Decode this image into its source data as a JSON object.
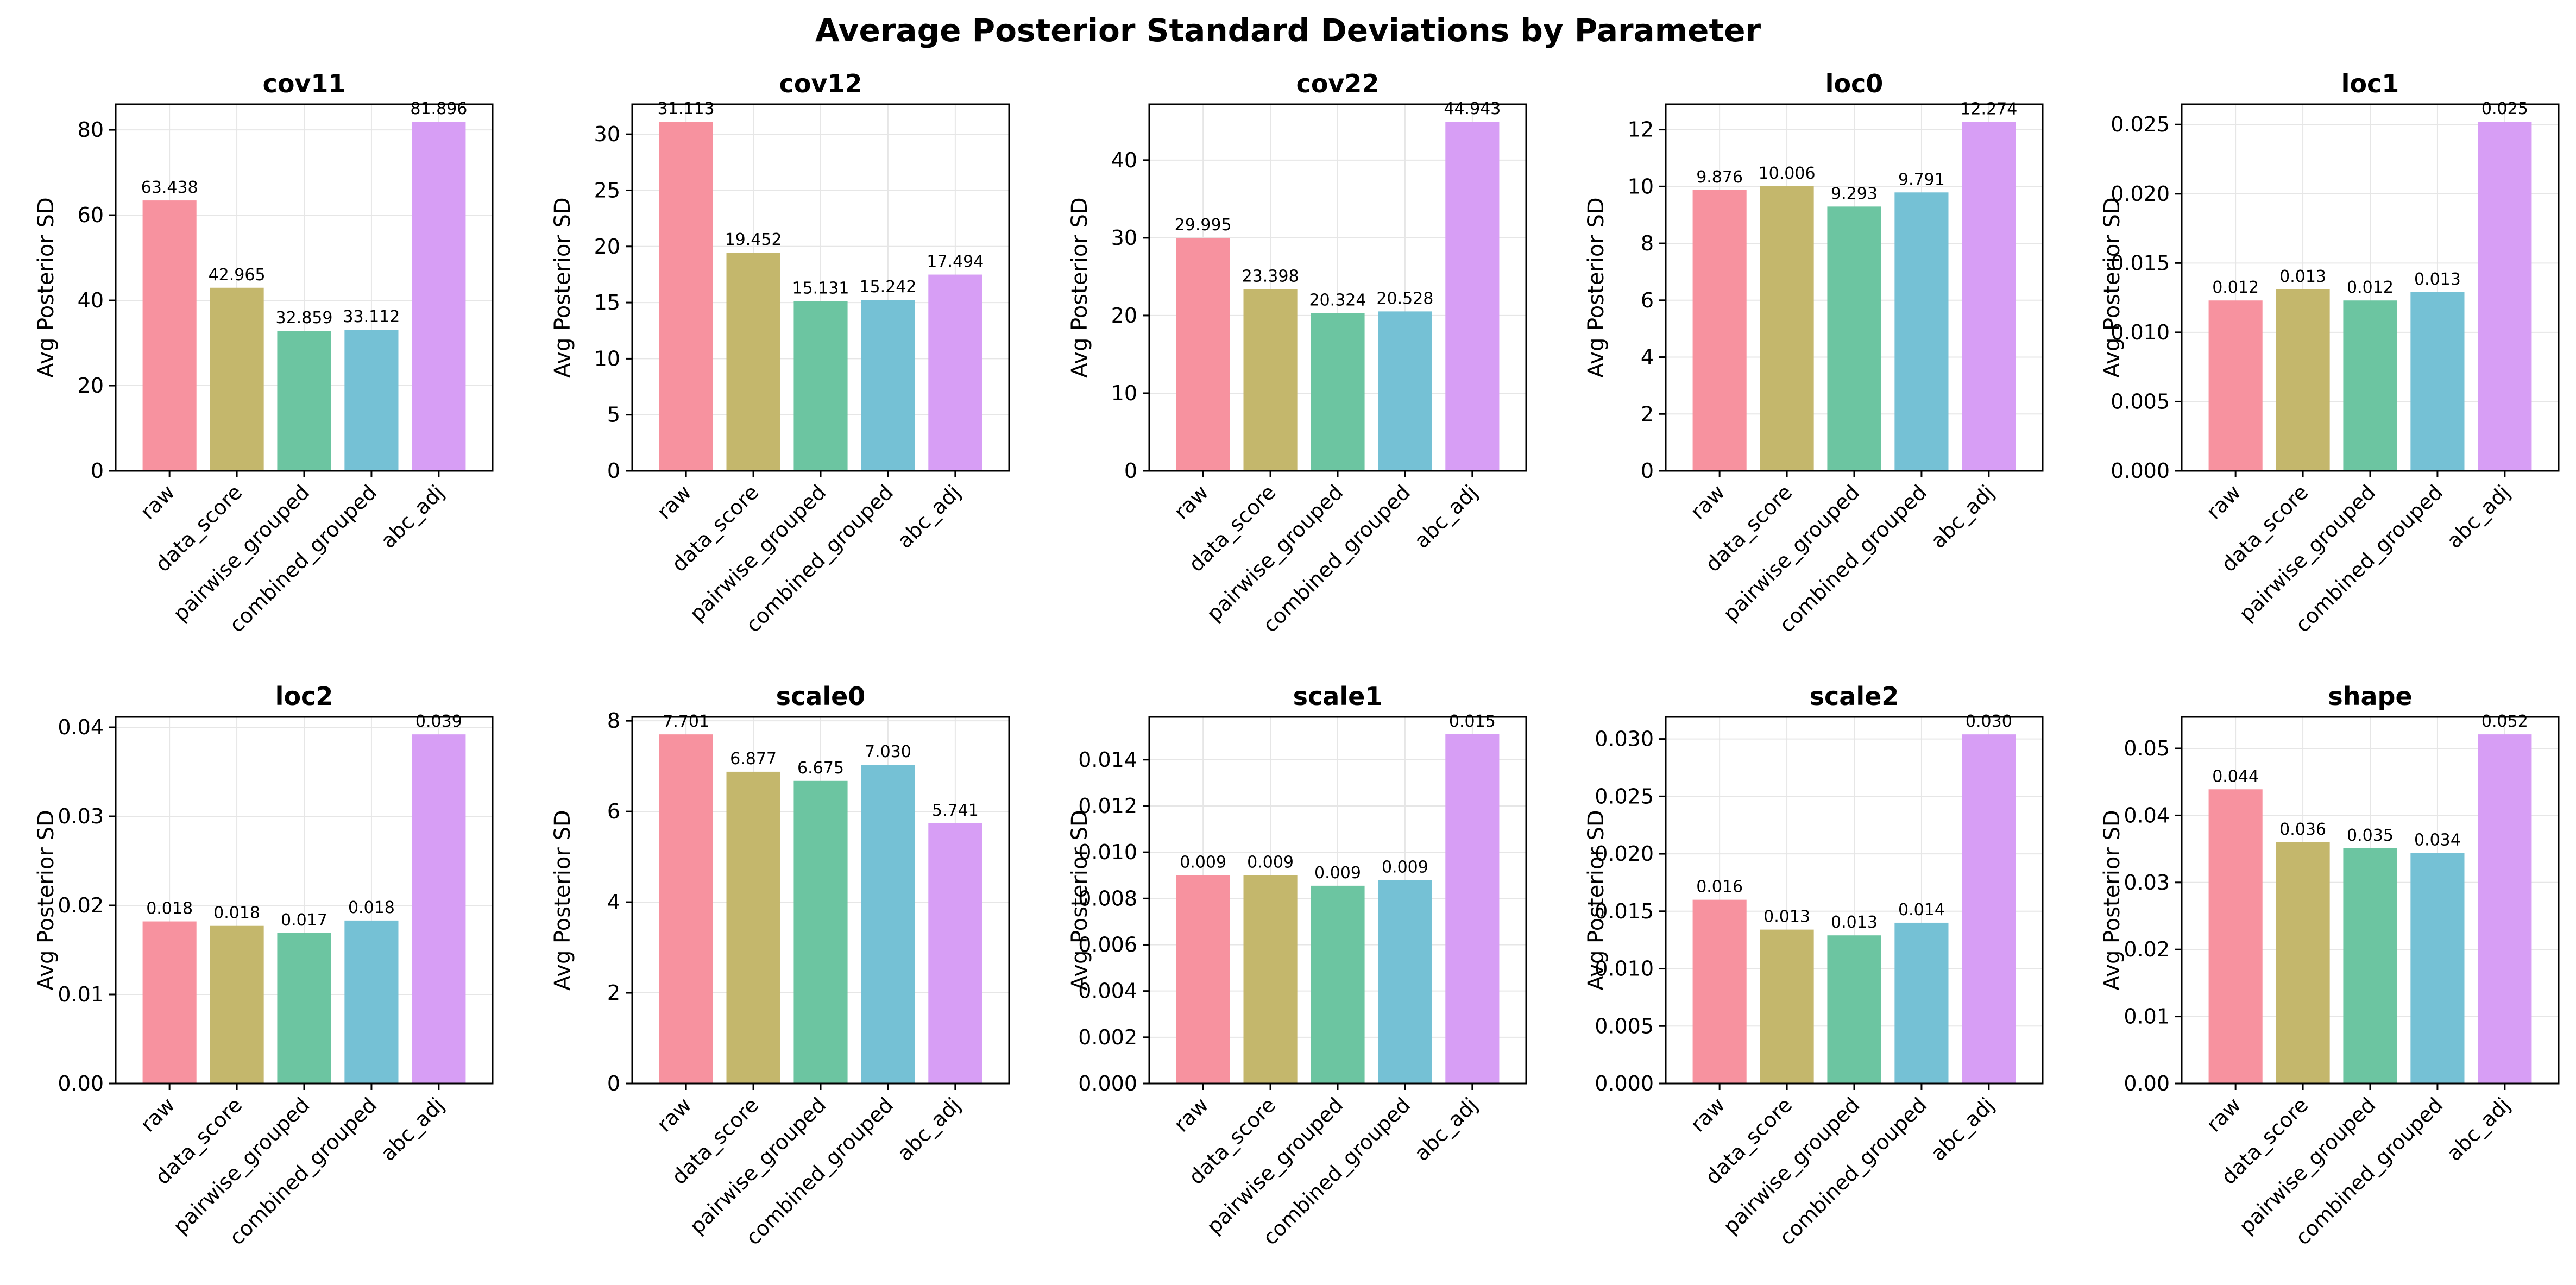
{
  "figure": {
    "title": "Average Posterior Standard Deviations by Parameter"
  },
  "colors": [
    "#f7929f",
    "#c4b76c",
    "#6cc5a1",
    "#75c1d5",
    "#d79ef5"
  ],
  "chart_data": [
    {
      "type": "bar",
      "title": "cov11",
      "ylabel": "Avg Posterior SD",
      "categories": [
        "raw",
        "data_score",
        "pairwise_grouped",
        "combined_grouped",
        "abc_adj"
      ],
      "values": [
        63.438,
        42.965,
        32.859,
        33.112,
        81.896
      ],
      "value_labels": [
        "63.438",
        "42.965",
        "32.859",
        "33.112",
        "81.896"
      ],
      "ylim": [
        0,
        86.0
      ],
      "yticks": [
        0,
        20,
        40,
        60,
        80
      ],
      "ytick_labels": [
        "0",
        "20",
        "40",
        "60",
        "80"
      ],
      "grid": true
    },
    {
      "type": "bar",
      "title": "cov12",
      "ylabel": "Avg Posterior SD",
      "categories": [
        "raw",
        "data_score",
        "pairwise_grouped",
        "combined_grouped",
        "abc_adj"
      ],
      "values": [
        31.113,
        19.452,
        15.131,
        15.242,
        17.494
      ],
      "value_labels": [
        "31.113",
        "19.452",
        "15.131",
        "15.242",
        "17.494"
      ],
      "ylim": [
        0,
        32.67
      ],
      "yticks": [
        0,
        5,
        10,
        15,
        20,
        25,
        30
      ],
      "ytick_labels": [
        "0",
        "5",
        "10",
        "15",
        "20",
        "25",
        "30"
      ],
      "grid": true
    },
    {
      "type": "bar",
      "title": "cov22",
      "ylabel": "Avg Posterior SD",
      "categories": [
        "raw",
        "data_score",
        "pairwise_grouped",
        "combined_grouped",
        "abc_adj"
      ],
      "values": [
        29.995,
        23.398,
        20.324,
        20.528,
        44.943
      ],
      "value_labels": [
        "29.995",
        "23.398",
        "20.324",
        "20.528",
        "44.943"
      ],
      "ylim": [
        0,
        47.19
      ],
      "yticks": [
        0,
        10,
        20,
        30,
        40
      ],
      "ytick_labels": [
        "0",
        "10",
        "20",
        "30",
        "40"
      ],
      "grid": true
    },
    {
      "type": "bar",
      "title": "loc0",
      "ylabel": "Avg Posterior SD",
      "categories": [
        "raw",
        "data_score",
        "pairwise_grouped",
        "combined_grouped",
        "abc_adj"
      ],
      "values": [
        9.876,
        10.006,
        9.293,
        9.791,
        12.274
      ],
      "value_labels": [
        "9.876",
        "10.006",
        "9.293",
        "9.791",
        "12.274"
      ],
      "ylim": [
        0,
        12.89
      ],
      "yticks": [
        0,
        2,
        4,
        6,
        8,
        10,
        12
      ],
      "ytick_labels": [
        "0",
        "2",
        "4",
        "6",
        "8",
        "10",
        "12"
      ],
      "grid": true
    },
    {
      "type": "bar",
      "title": "loc1",
      "ylabel": "Avg Posterior SD",
      "categories": [
        "raw",
        "data_score",
        "pairwise_grouped",
        "combined_grouped",
        "abc_adj"
      ],
      "values": [
        0.0123,
        0.0131,
        0.0123,
        0.0129,
        0.0252
      ],
      "value_labels": [
        "0.012",
        "0.013",
        "0.012",
        "0.013",
        "0.025"
      ],
      "ylim": [
        0,
        0.02646
      ],
      "yticks": [
        0,
        0.005,
        0.01,
        0.015,
        0.02,
        0.025
      ],
      "ytick_labels": [
        "0.000",
        "0.005",
        "0.010",
        "0.015",
        "0.020",
        "0.025"
      ],
      "grid": true
    },
    {
      "type": "bar",
      "title": "loc2",
      "ylabel": "Avg Posterior SD",
      "categories": [
        "raw",
        "data_score",
        "pairwise_grouped",
        "combined_grouped",
        "abc_adj"
      ],
      "values": [
        0.0182,
        0.0177,
        0.0169,
        0.0183,
        0.0392
      ],
      "value_labels": [
        "0.018",
        "0.018",
        "0.017",
        "0.018",
        "0.039"
      ],
      "ylim": [
        0,
        0.04116
      ],
      "yticks": [
        0,
        0.01,
        0.02,
        0.03,
        0.04
      ],
      "ytick_labels": [
        "0.00",
        "0.01",
        "0.02",
        "0.03",
        "0.04"
      ],
      "grid": true
    },
    {
      "type": "bar",
      "title": "scale0",
      "ylabel": "Avg Posterior SD",
      "categories": [
        "raw",
        "data_score",
        "pairwise_grouped",
        "combined_grouped",
        "abc_adj"
      ],
      "values": [
        7.701,
        6.877,
        6.675,
        7.03,
        5.741
      ],
      "value_labels": [
        "7.701",
        "6.877",
        "6.675",
        "7.030",
        "5.741"
      ],
      "ylim": [
        0,
        8.086
      ],
      "yticks": [
        0,
        2,
        4,
        6,
        8
      ],
      "ytick_labels": [
        "0",
        "2",
        "4",
        "6",
        "8"
      ],
      "grid": true
    },
    {
      "type": "bar",
      "title": "scale1",
      "ylabel": "Avg Posterior SD",
      "categories": [
        "raw",
        "data_score",
        "pairwise_grouped",
        "combined_grouped",
        "abc_adj"
      ],
      "values": [
        0.009,
        0.00901,
        0.00855,
        0.00879,
        0.0151
      ],
      "value_labels": [
        "0.009",
        "0.009",
        "0.009",
        "0.009",
        "0.015"
      ],
      "ylim": [
        0,
        0.01585
      ],
      "yticks": [
        0,
        0.002,
        0.004,
        0.006,
        0.008,
        0.01,
        0.012,
        0.014
      ],
      "ytick_labels": [
        "0.000",
        "0.002",
        "0.004",
        "0.006",
        "0.008",
        "0.010",
        "0.012",
        "0.014"
      ],
      "grid": true
    },
    {
      "type": "bar",
      "title": "scale2",
      "ylabel": "Avg Posterior SD",
      "categories": [
        "raw",
        "data_score",
        "pairwise_grouped",
        "combined_grouped",
        "abc_adj"
      ],
      "values": [
        0.016,
        0.0134,
        0.0129,
        0.014,
        0.0304
      ],
      "value_labels": [
        "0.016",
        "0.013",
        "0.013",
        "0.014",
        "0.030"
      ],
      "ylim": [
        0,
        0.03192
      ],
      "yticks": [
        0,
        0.005,
        0.01,
        0.015,
        0.02,
        0.025,
        0.03
      ],
      "ytick_labels": [
        "0.000",
        "0.005",
        "0.010",
        "0.015",
        "0.020",
        "0.025",
        "0.030"
      ],
      "grid": true
    },
    {
      "type": "bar",
      "title": "shape",
      "ylabel": "Avg Posterior SD",
      "categories": [
        "raw",
        "data_score",
        "pairwise_grouped",
        "combined_grouped",
        "abc_adj"
      ],
      "values": [
        0.0439,
        0.036,
        0.0351,
        0.0344,
        0.0521
      ],
      "value_labels": [
        "0.044",
        "0.036",
        "0.035",
        "0.034",
        "0.052"
      ],
      "ylim": [
        0,
        0.0547
      ],
      "yticks": [
        0,
        0.01,
        0.02,
        0.03,
        0.04,
        0.05
      ],
      "ytick_labels": [
        "0.00",
        "0.01",
        "0.02",
        "0.03",
        "0.04",
        "0.05"
      ],
      "grid": true
    }
  ]
}
